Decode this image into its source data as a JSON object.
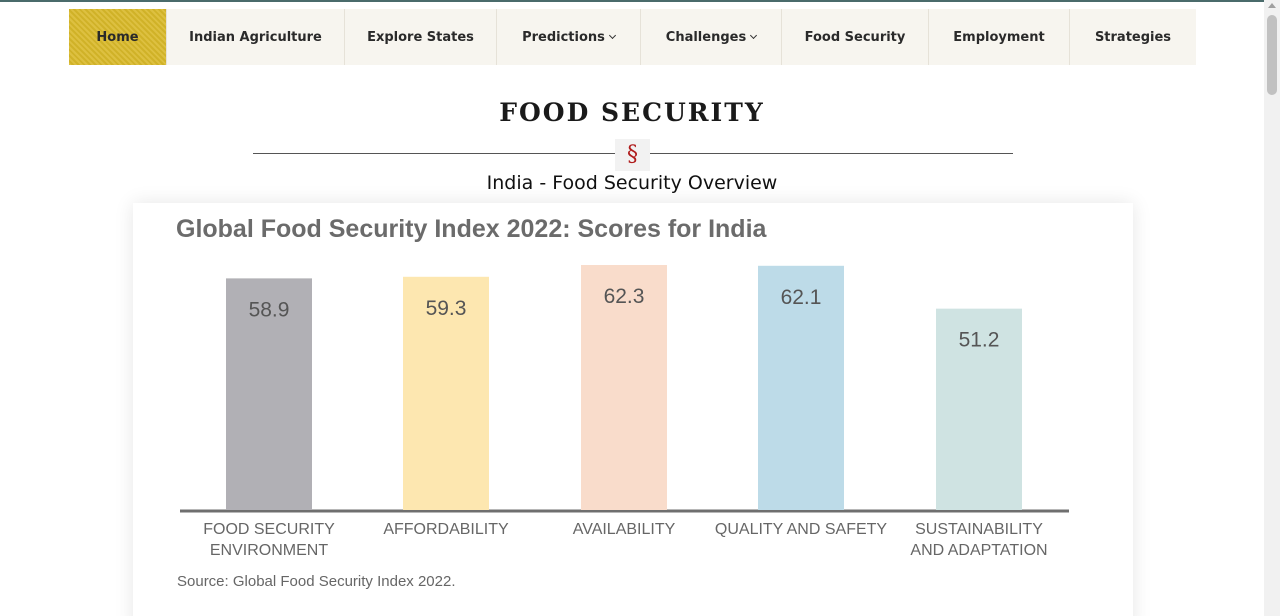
{
  "nav": {
    "items": [
      {
        "label": "Home",
        "active": true,
        "dropdown": false
      },
      {
        "label": "Indian Agriculture",
        "active": false,
        "dropdown": false
      },
      {
        "label": "Explore States",
        "active": false,
        "dropdown": false
      },
      {
        "label": "Predictions",
        "active": false,
        "dropdown": true
      },
      {
        "label": "Challenges",
        "active": false,
        "dropdown": true
      },
      {
        "label": "Food Security",
        "active": false,
        "dropdown": false
      },
      {
        "label": "Employment",
        "active": false,
        "dropdown": false
      },
      {
        "label": "Strategies",
        "active": false,
        "dropdown": false
      }
    ],
    "active_color": "#d9b92a"
  },
  "page": {
    "title": "FOOD SECURITY",
    "section_mark": "§",
    "subtitle": "India - Food Security Overview"
  },
  "chart_data": {
    "type": "bar",
    "title": "Global Food Security Index 2022: Scores for India",
    "categories": [
      [
        "FOOD SECURITY",
        "ENVIRONMENT"
      ],
      [
        "AFFORDABILITY"
      ],
      [
        "AVAILABILITY"
      ],
      [
        "QUALITY AND SAFETY"
      ],
      [
        "SUSTAINABILITY",
        "AND ADAPTATION"
      ]
    ],
    "values": [
      58.9,
      59.3,
      62.3,
      62.1,
      51.2
    ],
    "value_labels": [
      "58.9",
      "59.3",
      "62.3",
      "62.1",
      "51.2"
    ],
    "colors": [
      "#b1b0b5",
      "#fde7b0",
      "#f9dccb",
      "#bddbe8",
      "#cfe3e2"
    ],
    "source": "Source: Global Food Security Index 2022.",
    "xlabel": "",
    "ylabel": ""
  }
}
